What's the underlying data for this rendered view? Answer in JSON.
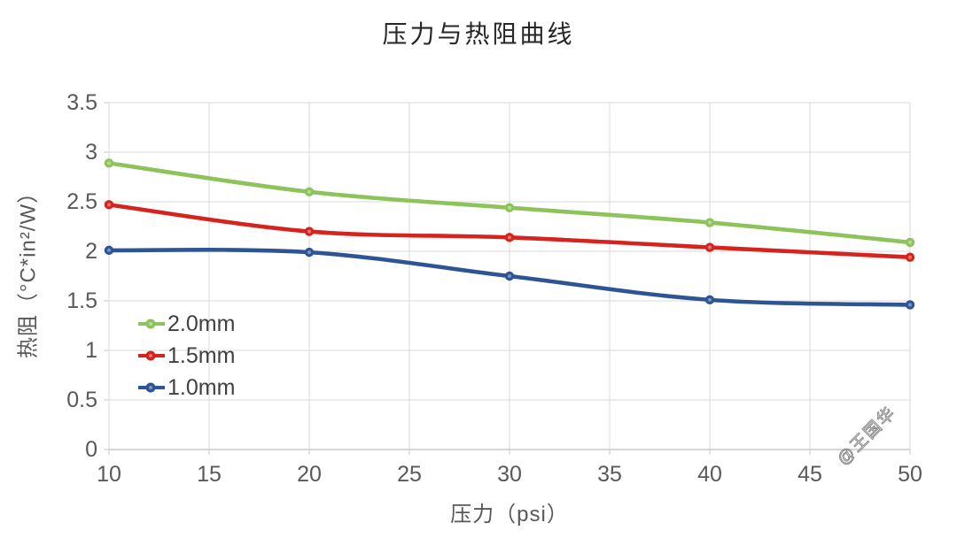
{
  "chart_data": {
    "type": "line",
    "title": "压力与热阻曲线",
    "xlabel": "压力（psi）",
    "ylabel": "热阻（°C*in²/W）",
    "xlim": [
      10,
      50
    ],
    "ylim": [
      0,
      3.5
    ],
    "grid": true,
    "smooth_lines": true,
    "legend_position": "inside-bottom-left",
    "x": [
      10,
      20,
      30,
      40,
      50
    ],
    "xticks": [
      {
        "v": 10,
        "label": "10"
      },
      {
        "v": 15,
        "label": "15"
      },
      {
        "v": 20,
        "label": "20"
      },
      {
        "v": 25,
        "label": "25"
      },
      {
        "v": 30,
        "label": "30"
      },
      {
        "v": 35,
        "label": "35"
      },
      {
        "v": 40,
        "label": "40"
      },
      {
        "v": 45,
        "label": "45"
      },
      {
        "v": 50,
        "label": "50"
      }
    ],
    "yticks": [
      {
        "v": 0,
        "label": "0"
      },
      {
        "v": 0.5,
        "label": "0.5"
      },
      {
        "v": 1,
        "label": "1"
      },
      {
        "v": 1.5,
        "label": "1.5"
      },
      {
        "v": 2,
        "label": "2"
      },
      {
        "v": 2.5,
        "label": "2.5"
      },
      {
        "v": 3,
        "label": "3"
      },
      {
        "v": 3.5,
        "label": "3.5"
      }
    ],
    "series": [
      {
        "name": "2.0mm",
        "color": "#8CC35A",
        "values": [
          2.89,
          2.6,
          2.44,
          2.29,
          2.09
        ]
      },
      {
        "name": "1.5mm",
        "color": "#D7231E",
        "values": [
          2.47,
          2.2,
          2.14,
          2.04,
          1.94
        ]
      },
      {
        "name": "1.0mm",
        "color": "#2D5596",
        "values": [
          2.01,
          1.99,
          1.75,
          1.51,
          1.46
        ]
      }
    ]
  },
  "watermark": {
    "text": "@王国华"
  },
  "colors": {
    "background": "#FFFFFF",
    "gridline": "#D9D9D9",
    "axis_line": "#C9C9C9",
    "axis_text": "#595959",
    "title_text": "#262626",
    "legend_text": "#404040",
    "watermark_text": "#8A8A8A"
  }
}
